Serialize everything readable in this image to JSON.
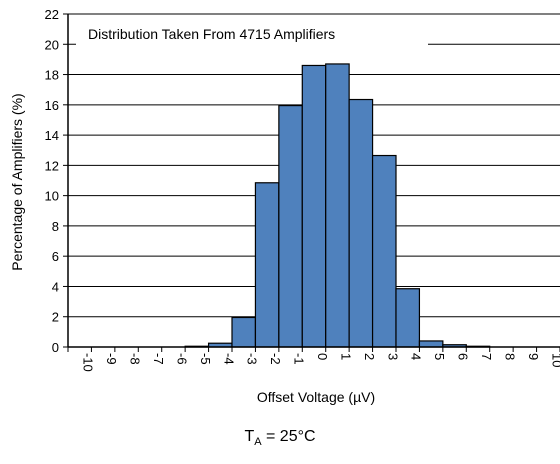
{
  "chart_data": {
    "type": "bar",
    "categories": [
      "-10",
      "-9",
      "-8",
      "-7",
      "-6",
      "-5",
      "-4",
      "-3",
      "-2",
      "-1",
      "0",
      "1",
      "2",
      "3",
      "4",
      "5",
      "6",
      "7",
      "8",
      "9",
      "10"
    ],
    "values": [
      0,
      0,
      0,
      0,
      0,
      0.05,
      0.25,
      1.95,
      10.85,
      15.95,
      18.6,
      18.7,
      16.35,
      12.65,
      3.85,
      0.4,
      0.15,
      0.05,
      0,
      0,
      0
    ],
    "title": "",
    "annotation": "Distribution Taken From 4715 Amplifiers",
    "xlabel": "Offset Voltage (µV)",
    "ylabel": "Percentage of Amplifiers (%)",
    "ylim": [
      0,
      22
    ],
    "yticks": [
      0,
      2,
      4,
      6,
      8,
      10,
      12,
      14,
      16,
      18,
      20,
      22
    ],
    "grid": true,
    "bar_color": "#4f81bd",
    "bar_edge_color": "#000000"
  },
  "caption": {
    "symbol": "T",
    "subscript": "A",
    "rest": " = 25°C"
  }
}
